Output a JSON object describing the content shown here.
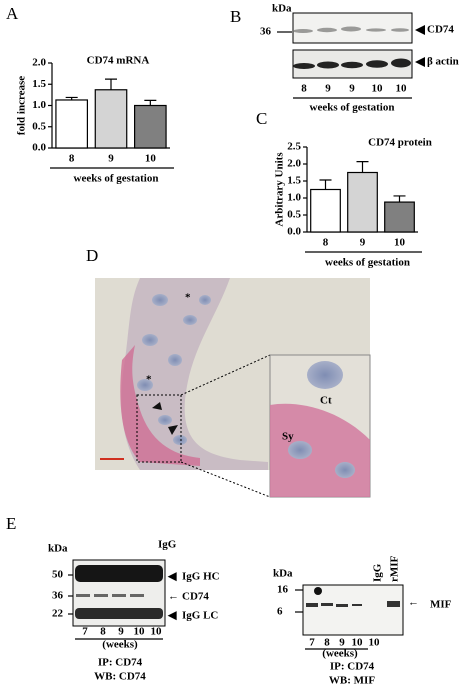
{
  "panels": {
    "A": {
      "label": "A",
      "chart": {
        "type": "bar",
        "title": "CD74 mRNA",
        "ylabel": "fold increase",
        "xlabel": "weeks of gestation",
        "categories": [
          "8",
          "9",
          "10"
        ],
        "values": [
          1.13,
          1.37,
          1.0
        ],
        "errors": [
          0.06,
          0.25,
          0.12
        ],
        "colors": [
          "#ffffff",
          "#d4d4d4",
          "#808080"
        ],
        "ylim": [
          0,
          2.0
        ],
        "yticks": [
          {
            "value": 0,
            "label": "0.0"
          },
          {
            "value": 0.5,
            "label": "0.5"
          },
          {
            "value": 1,
            "label": "1.0"
          },
          {
            "value": 1.5,
            "label": "1.5"
          },
          {
            "value": 2,
            "label": "2.0"
          }
        ]
      }
    },
    "B": {
      "label": "B",
      "unit": "kDa",
      "marker": "36",
      "bands": [
        "CD74",
        "β actin"
      ],
      "lanes": [
        "8",
        "9",
        "9",
        "10",
        "10"
      ],
      "xlabel": "weeks of gestation"
    },
    "C": {
      "label": "C",
      "chart": {
        "type": "bar",
        "title": "CD74 protein",
        "ylabel": "Arbitrary Units",
        "xlabel": "weeks of gestation",
        "categories": [
          "8",
          "9",
          "10"
        ],
        "values": [
          1.25,
          1.75,
          0.88
        ],
        "errors": [
          0.28,
          0.32,
          0.18
        ],
        "colors": [
          "#ffffff",
          "#d4d4d4",
          "#808080"
        ],
        "ylim": [
          0,
          2.5
        ],
        "yticks": [
          {
            "value": 0,
            "label": "0.0"
          },
          {
            "value": 0.5,
            "label": "0.5"
          },
          {
            "value": 1,
            "label": "1.0"
          },
          {
            "value": 1.5,
            "label": "1.5"
          },
          {
            "value": 2,
            "label": "2.0"
          },
          {
            "value": 2.5,
            "label": "2.5"
          }
        ]
      }
    },
    "D": {
      "label": "D",
      "annotations": [
        "*",
        "*",
        "Ct",
        "Sy"
      ]
    },
    "E": {
      "label": "E",
      "left": {
        "unit": "kDa",
        "markers": [
          "50",
          "36",
          "22"
        ],
        "control": "IgG",
        "bands": [
          "IgG HC",
          "CD74",
          "IgG LC"
        ],
        "lanes": [
          "7",
          "8",
          "9",
          "10",
          "10"
        ],
        "lanes_note": "(weeks)",
        "ip": "IP: CD74",
        "wb": "WB: CD74"
      },
      "right": {
        "unit": "kDa",
        "markers": [
          "16",
          "6"
        ],
        "controls": [
          "IgG",
          "rMIF"
        ],
        "band": "MIF",
        "lanes": [
          "7",
          "8",
          "9",
          "10",
          "10"
        ],
        "lanes_note": "(weeks)",
        "ip": "IP: CD74",
        "wb": "WB: MIF"
      }
    }
  }
}
